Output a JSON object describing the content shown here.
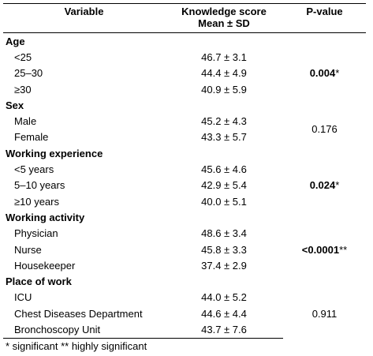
{
  "headers": {
    "variable": "Variable",
    "score_line1": "Knowledge score",
    "score_line2": "Mean ± SD",
    "pvalue": "P-value"
  },
  "groups": [
    {
      "label": "Age",
      "rows": [
        {
          "label": "<25",
          "value": "46.7 ± 3.1"
        },
        {
          "label": "25–30",
          "value": "44.4 ± 4.9"
        },
        {
          "label": "≥30",
          "value": "40.9 ± 5.9"
        }
      ],
      "p": "0.004",
      "p_mark": "*",
      "p_bold": true
    },
    {
      "label": "Sex",
      "rows": [
        {
          "label": "Male",
          "value": "45.2 ± 4.3"
        },
        {
          "label": "Female",
          "value": "43.3 ± 5.7"
        }
      ],
      "p": "0.176",
      "p_mark": "",
      "p_bold": false
    },
    {
      "label": "Working experience",
      "rows": [
        {
          "label": "<5 years",
          "value": "45.6 ± 4.6"
        },
        {
          "label": "5–10 years",
          "value": "42.9 ± 5.4"
        },
        {
          "label": "≥10 years",
          "value": "40.0 ± 5.1"
        }
      ],
      "p": "0.024",
      "p_mark": "*",
      "p_bold": true
    },
    {
      "label": "Working activity",
      "rows": [
        {
          "label": "Physician",
          "value": "48.6 ± 3.4"
        },
        {
          "label": "Nurse",
          "value": "45.8 ± 3.3"
        },
        {
          "label": "Housekeeper",
          "value": "37.4 ± 2.9"
        }
      ],
      "p": "<0.0001",
      "p_mark": "**",
      "p_bold": true
    },
    {
      "label": "Place of work",
      "rows": [
        {
          "label": "ICU",
          "value": "44.0 ± 5.2"
        },
        {
          "label": "Chest Diseases Department",
          "value": "44.6 ± 4.4"
        },
        {
          "label": "Bronchoscopy Unit",
          "value": "43.7 ± 7.6"
        }
      ],
      "p": "0.911",
      "p_mark": "",
      "p_bold": false
    }
  ],
  "footnote": "* significant  ** highly significant"
}
